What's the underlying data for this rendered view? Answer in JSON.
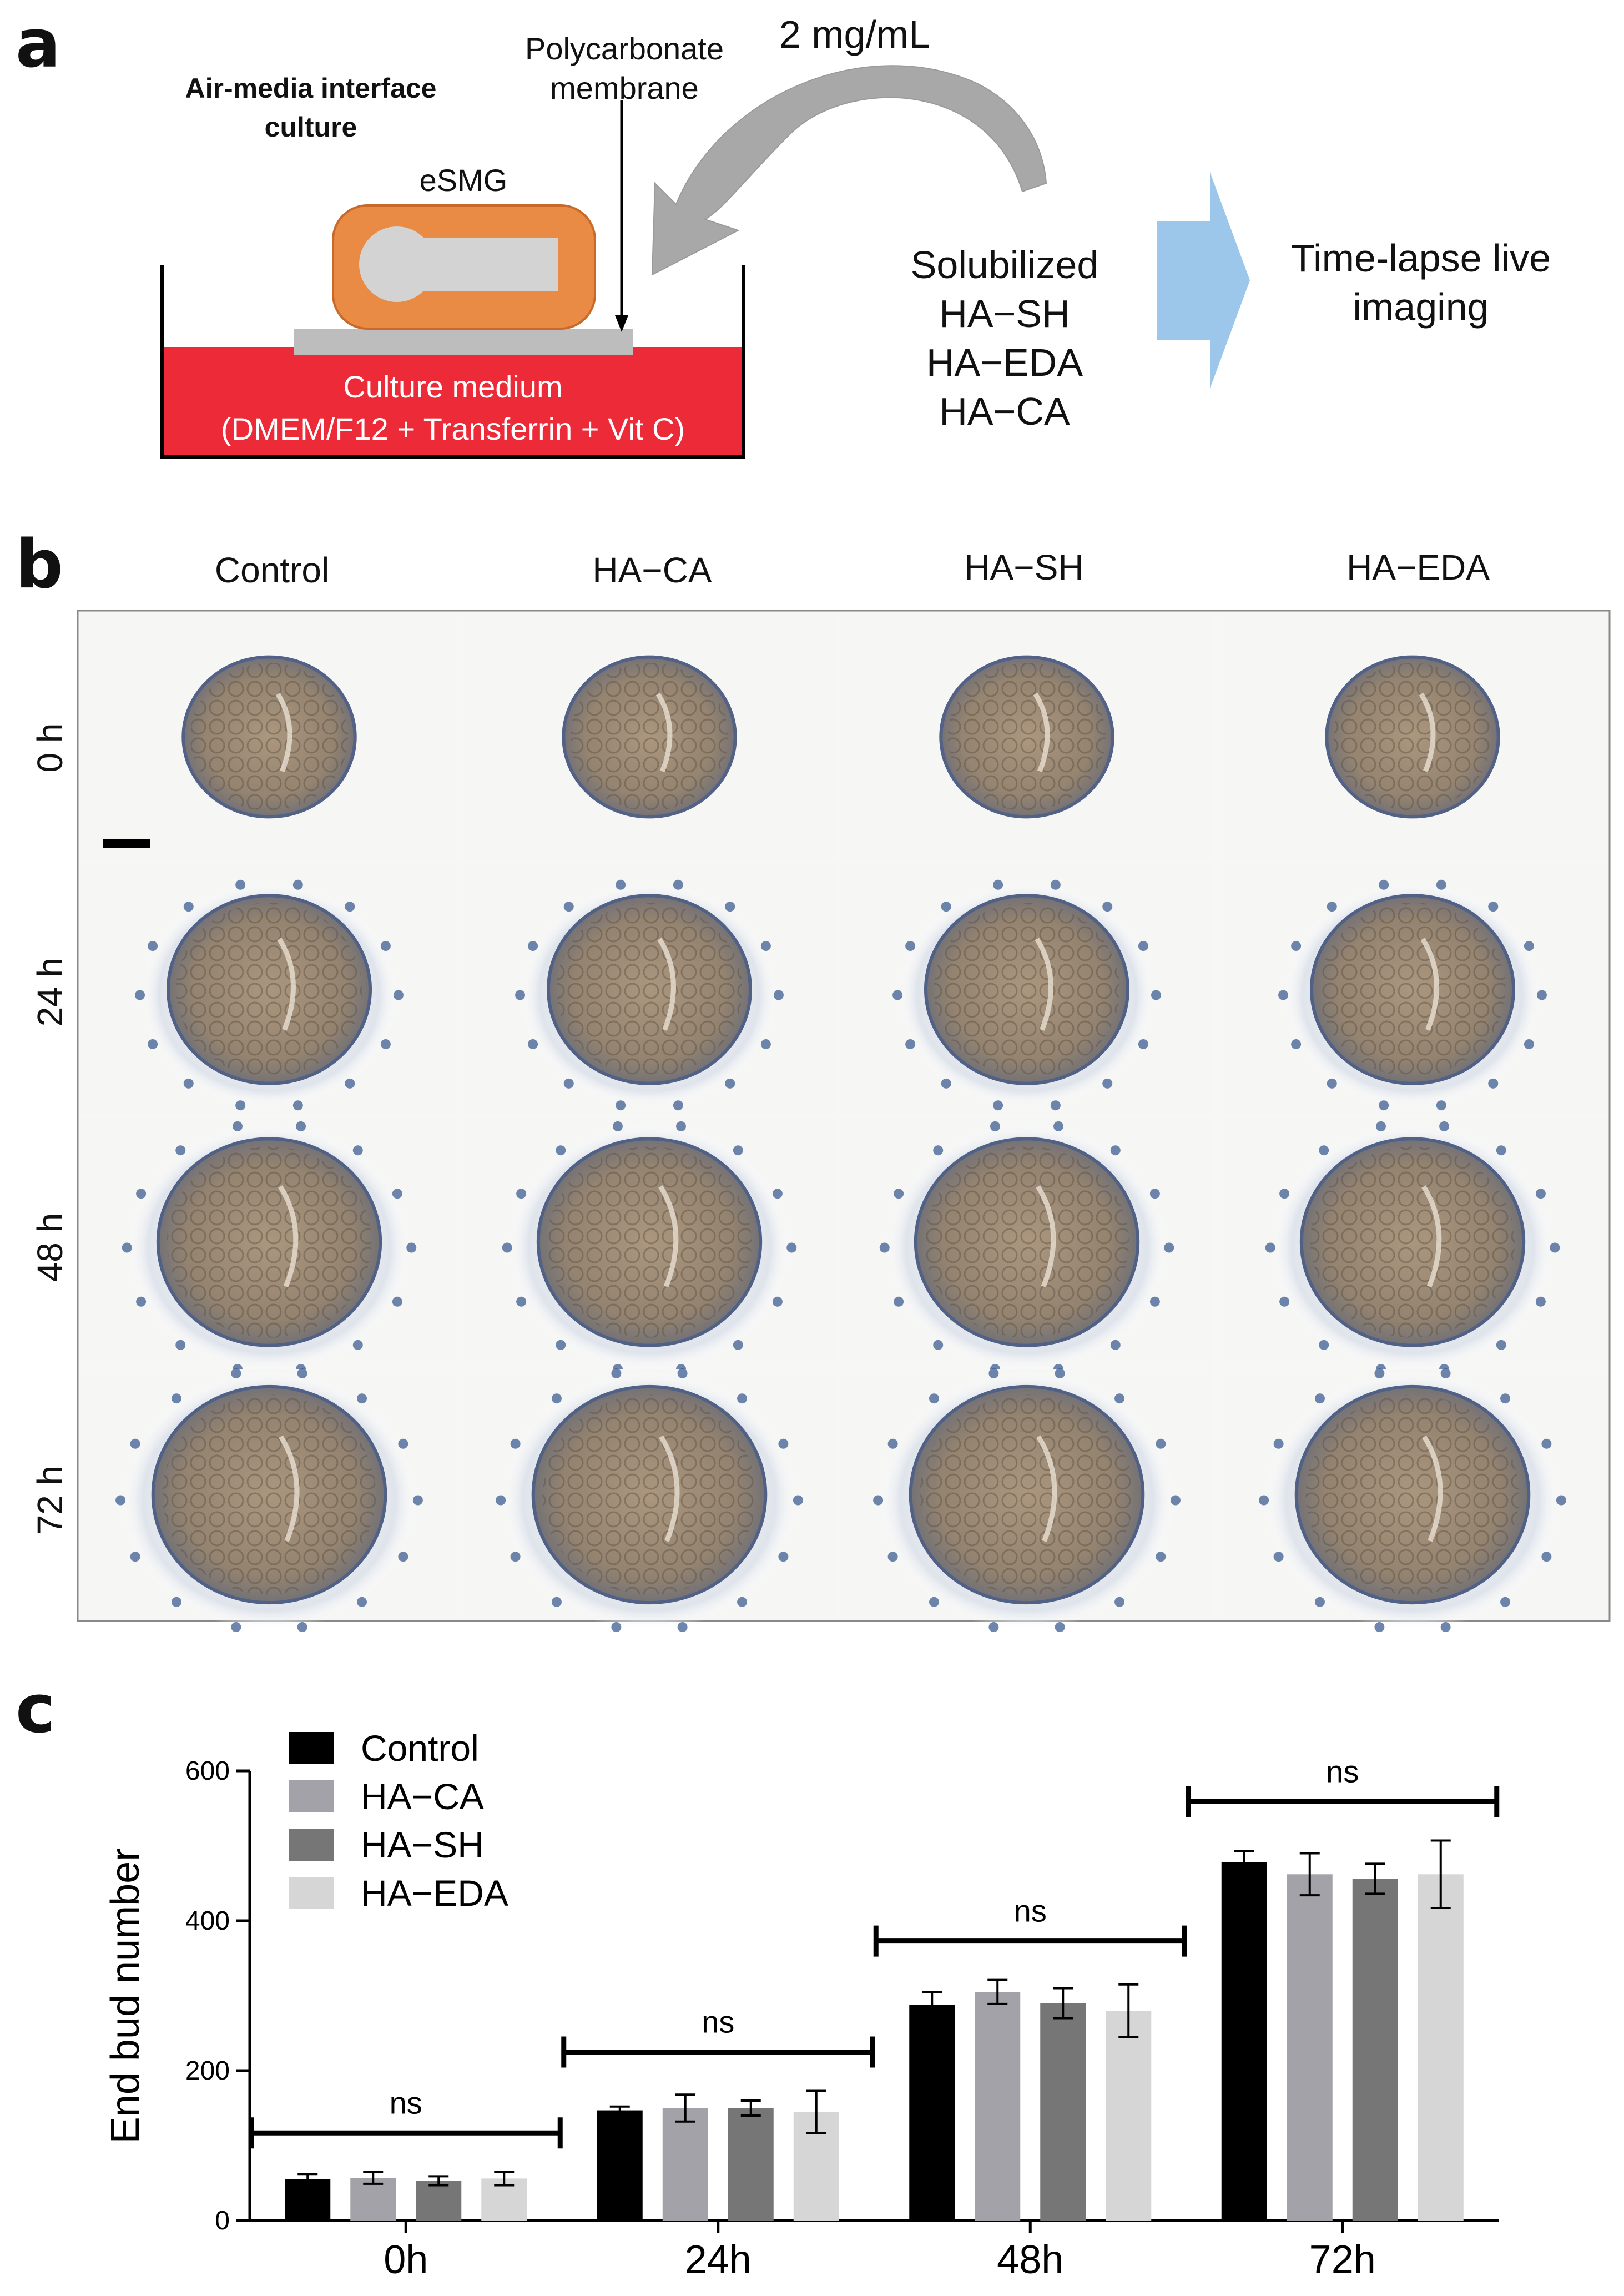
{
  "panel_a": {
    "label": "a",
    "culture_title_line1": "Air-media interface",
    "culture_title_line2": "culture",
    "esmg_label": "eSMG",
    "membrane_line1": "Polycarbonate",
    "membrane_line2": "membrane",
    "medium_line1": "Culture medium",
    "medium_line2": "(DMEM/F12 + Transferrin + Vit C)",
    "concentration": "2 mg/mL",
    "solubilized_title": "Solubilized",
    "solubilized_items": [
      "HA−SH",
      "HA−EDA",
      "HA−CA"
    ],
    "imaging_line1": "Time-lapse live",
    "imaging_line2": "imaging",
    "colors": {
      "medium": "#ed2a38",
      "esmg": "#e98a45",
      "arrow": "#a8a8a8",
      "blue_arrow": "#9cc6ea"
    }
  },
  "panel_b": {
    "label": "b",
    "columns": [
      "Control",
      "HA−CA",
      "HA−SH",
      "HA−EDA"
    ],
    "rows": [
      "0 h",
      "24 h",
      "48 h",
      "72 h"
    ]
  },
  "panel_c": {
    "label": "c",
    "significance": [
      "ns",
      "ns",
      "ns",
      "ns"
    ]
  },
  "chart_data": {
    "type": "bar",
    "categories": [
      "0h",
      "24h",
      "48h",
      "72h"
    ],
    "series": [
      {
        "name": "Control",
        "color": "#000000",
        "values": [
          55,
          147,
          288,
          478
        ],
        "errors": [
          7,
          5,
          17,
          15
        ]
      },
      {
        "name": "HA−CA",
        "color": "#a2a2a8",
        "values": [
          57,
          150,
          305,
          462
        ],
        "errors": [
          8,
          18,
          16,
          28
        ]
      },
      {
        "name": "HA−SH",
        "color": "#767676",
        "values": [
          53,
          150,
          290,
          456
        ],
        "errors": [
          6,
          10,
          20,
          20
        ]
      },
      {
        "name": "HA−EDA",
        "color": "#d6d6d6",
        "values": [
          56,
          145,
          280,
          462
        ],
        "errors": [
          9,
          28,
          35,
          45
        ]
      }
    ],
    "ylabel": "End bud number",
    "xlabel": "",
    "ylim": [
      0,
      600
    ],
    "yticks": [
      0,
      200,
      400,
      600
    ],
    "legend": "top-left",
    "grid": false
  }
}
